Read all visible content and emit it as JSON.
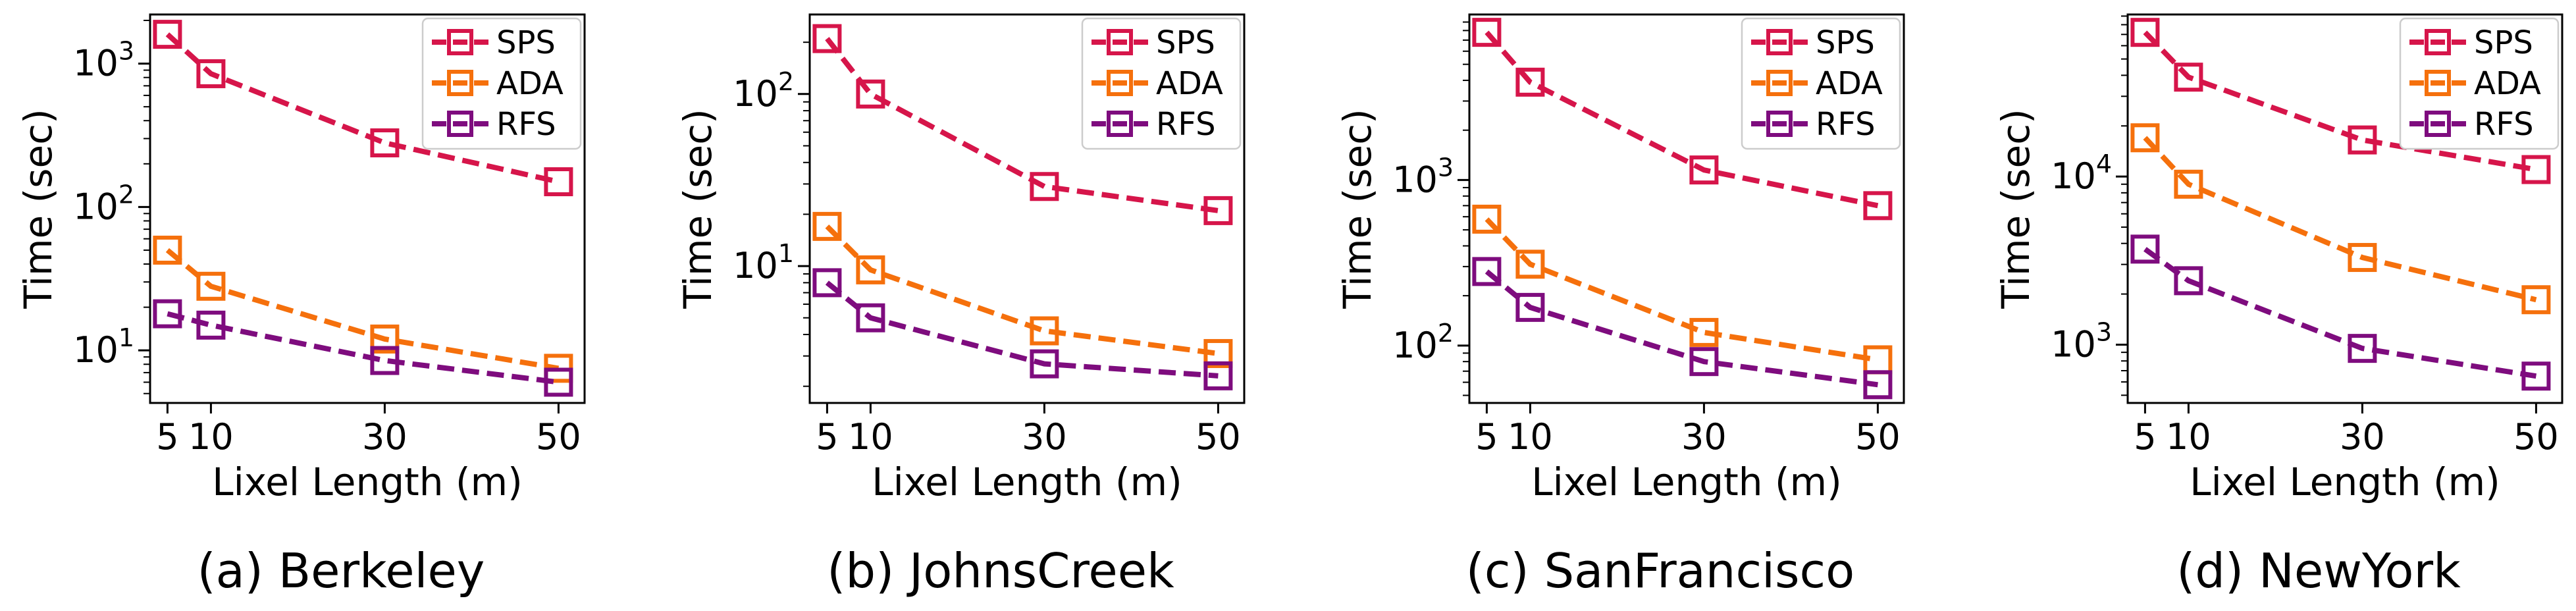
{
  "figure": {
    "series_colors": {
      "SPS": "#d6154a",
      "ADA": "#f5700c",
      "RFS": "#7e0c7e"
    }
  },
  "chart_data": [
    {
      "type": "line",
      "caption": "(a) Berkeley",
      "xlabel": "Lixel Length (m)",
      "ylabel": "Time (sec)",
      "yscale": "log",
      "x": [
        5,
        10,
        30,
        50
      ],
      "xticks": [
        5,
        10,
        30,
        50
      ],
      "xlim": [
        3,
        53
      ],
      "ylim": [
        4.3,
        2200
      ],
      "yticks": [
        {
          "base": "10",
          "exp": "1",
          "value": 10
        },
        {
          "base": "10",
          "exp": "2",
          "value": 100
        },
        {
          "base": "10",
          "exp": "3",
          "value": 1000
        }
      ],
      "legend_position": "top-right",
      "series": [
        {
          "name": "SPS",
          "values": [
            1600,
            850,
            280,
            150
          ]
        },
        {
          "name": "ADA",
          "values": [
            50,
            28,
            12,
            7.5
          ]
        },
        {
          "name": "RFS",
          "values": [
            18,
            15,
            8.5,
            6
          ]
        }
      ]
    },
    {
      "type": "line",
      "caption": "(b) JohnsCreek",
      "xlabel": "Lixel Length (m)",
      "ylabel": "Time (sec)",
      "yscale": "log",
      "x": [
        5,
        10,
        30,
        50
      ],
      "xticks": [
        5,
        10,
        30,
        50
      ],
      "xlim": [
        3,
        53
      ],
      "ylim": [
        1.6,
        290
      ],
      "yticks": [
        {
          "base": "10",
          "exp": "1",
          "value": 10
        },
        {
          "base": "10",
          "exp": "2",
          "value": 100
        }
      ],
      "legend_position": "top-right",
      "series": [
        {
          "name": "SPS",
          "values": [
            210,
            100,
            29,
            21
          ]
        },
        {
          "name": "ADA",
          "values": [
            17,
            9.5,
            4.2,
            3.1
          ]
        },
        {
          "name": "RFS",
          "values": [
            8,
            5,
            2.7,
            2.3
          ]
        }
      ]
    },
    {
      "type": "line",
      "caption": "(c) SanFrancisco",
      "xlabel": "Lixel Length (m)",
      "ylabel": "Time (sec)",
      "yscale": "log",
      "x": [
        5,
        10,
        30,
        50
      ],
      "xticks": [
        5,
        10,
        30,
        50
      ],
      "xlim": [
        3,
        53
      ],
      "ylim": [
        45,
        10000
      ],
      "yticks": [
        {
          "base": "10",
          "exp": "2",
          "value": 100
        },
        {
          "base": "10",
          "exp": "3",
          "value": 1000
        }
      ],
      "legend_position": "top-right",
      "series": [
        {
          "name": "SPS",
          "values": [
            7800,
            3900,
            1150,
            700
          ]
        },
        {
          "name": "ADA",
          "values": [
            580,
            310,
            120,
            82
          ]
        },
        {
          "name": "RFS",
          "values": [
            280,
            170,
            80,
            58
          ]
        }
      ]
    },
    {
      "type": "line",
      "caption": "(d) NewYork",
      "xlabel": "Lixel Length (m)",
      "ylabel": "Time (sec)",
      "yscale": "log",
      "x": [
        5,
        10,
        30,
        50
      ],
      "xticks": [
        5,
        10,
        30,
        50
      ],
      "xlim": [
        3,
        53
      ],
      "ylim": [
        450,
        92000
      ],
      "yticks": [
        {
          "base": "10",
          "exp": "3",
          "value": 1000
        },
        {
          "base": "10",
          "exp": "4",
          "value": 10000
        }
      ],
      "legend_position": "top-right",
      "series": [
        {
          "name": "SPS",
          "values": [
            72000,
            39000,
            16500,
            11000
          ]
        },
        {
          "name": "ADA",
          "values": [
            17000,
            9000,
            3300,
            1850
          ]
        },
        {
          "name": "RFS",
          "values": [
            3700,
            2400,
            950,
            650
          ]
        }
      ]
    }
  ]
}
